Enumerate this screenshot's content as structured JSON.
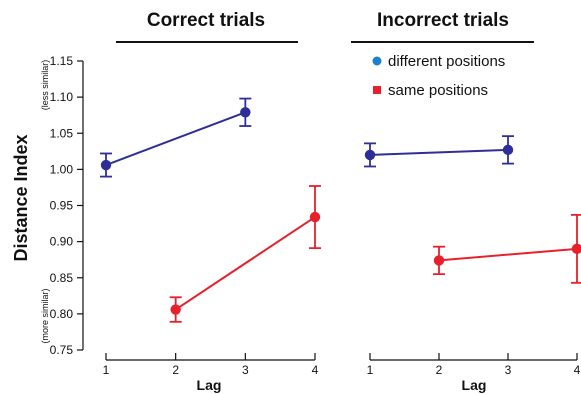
{
  "chart_data": [
    {
      "type": "line",
      "title": "Correct trials",
      "xlabel": "Lag",
      "ylabel": "Distance Index",
      "ylabel_top": "(less similar)",
      "ylabel_bottom": "(more similar)",
      "xlim": [
        1,
        4
      ],
      "ylim": [
        0.75,
        1.15
      ],
      "x_ticks": [
        1,
        2,
        3,
        4
      ],
      "x_tick_labels": [
        "1",
        "2",
        "3",
        "4"
      ],
      "y_ticks": [
        0.75,
        0.8,
        0.85,
        0.9,
        0.95,
        1.0,
        1.05,
        1.1,
        1.15
      ],
      "y_tick_labels": [
        "0.75",
        "0.80",
        "0.85",
        "0.90",
        "0.95",
        "1.00",
        "1.05",
        "1.10",
        "1.15"
      ],
      "grid": false,
      "series": [
        {
          "color": "#2e2e98",
          "x": [
            1,
            3
          ],
          "y": [
            1.006,
            1.079
          ],
          "err": [
            0.016,
            0.019
          ]
        },
        {
          "color": "#e8202b",
          "x": [
            2,
            4
          ],
          "y": [
            0.806,
            0.934
          ],
          "err": [
            0.017,
            0.043
          ]
        }
      ]
    },
    {
      "type": "line",
      "title": "Incorrect trials",
      "xlabel": "Lag",
      "xlim": [
        1,
        4
      ],
      "ylim": [
        0.75,
        1.15
      ],
      "x_ticks": [
        1,
        2,
        3,
        4
      ],
      "x_tick_labels": [
        "1",
        "2",
        "3",
        "4"
      ],
      "grid": false,
      "legend": {
        "position": "top-right",
        "entries": [
          {
            "label": "different positions",
            "marker": "circle",
            "color": "#1f7fcf"
          },
          {
            "label": "same positions",
            "marker": "square",
            "color": "#e8202b"
          }
        ]
      },
      "series": [
        {
          "color": "#2e2e98",
          "x": [
            1,
            3
          ],
          "y": [
            1.02,
            1.027
          ],
          "err": [
            0.016,
            0.019
          ]
        },
        {
          "color": "#e8202b",
          "x": [
            2,
            4
          ],
          "y": [
            0.874,
            0.89
          ],
          "err": [
            0.019,
            0.047
          ]
        }
      ]
    }
  ]
}
